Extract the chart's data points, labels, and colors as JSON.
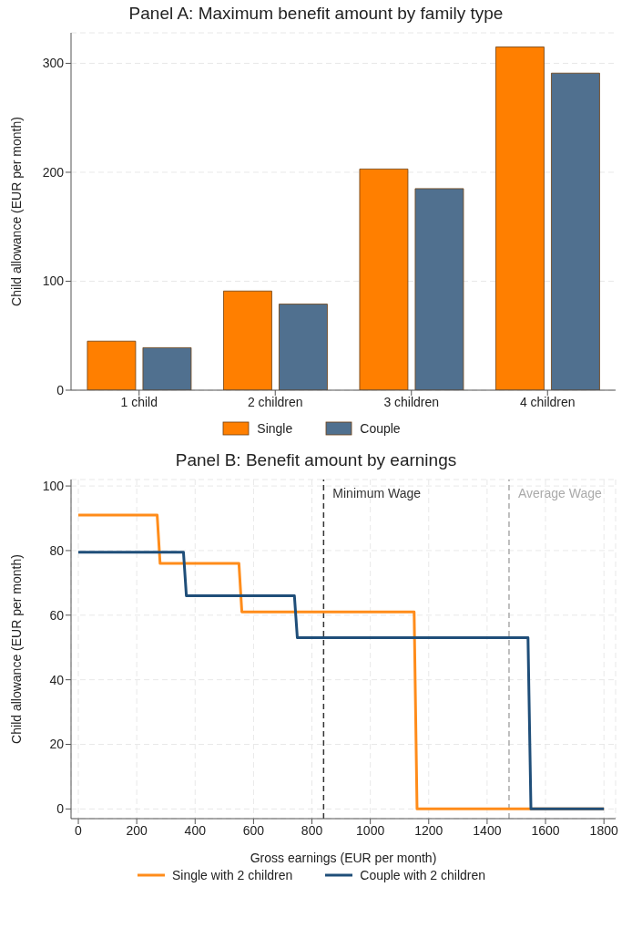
{
  "chart_data": [
    {
      "type": "bar",
      "title": "Panel A: Maximum benefit amount by family type",
      "ylabel": "Child allowance (EUR per month)",
      "categories": [
        "1 child",
        "2 children",
        "3 children",
        "4 children"
      ],
      "series": [
        {
          "name": "Single",
          "color": "#ff7f00",
          "values": [
            45,
            91,
            203,
            315
          ]
        },
        {
          "name": "Couple",
          "color": "#50708f",
          "values": [
            39,
            79,
            185,
            291
          ]
        }
      ],
      "ylim": [
        0,
        328
      ],
      "yticks": [
        0,
        100,
        200,
        300
      ],
      "grid": "y",
      "legend": "bottom"
    },
    {
      "type": "line",
      "title": "Panel B: Benefit amount by earnings",
      "xlabel": "Gross earnings (EUR per month)",
      "ylabel": "Child allowance (EUR per month)",
      "series": [
        {
          "name": "Single with 2 children",
          "color": "#ff8c1a",
          "x": [
            0,
            270,
            280,
            550,
            560,
            1150,
            1160,
            1800
          ],
          "values": [
            91,
            91,
            76,
            76,
            61,
            61,
            0,
            0
          ]
        },
        {
          "name": "Couple with 2 children",
          "color": "#1f4e79",
          "x": [
            0,
            360,
            370,
            740,
            750,
            1540,
            1550,
            1800
          ],
          "values": [
            79.5,
            79.5,
            66,
            66,
            53,
            53,
            0,
            0
          ]
        }
      ],
      "xlim": [
        -25,
        1840
      ],
      "xticks": [
        0,
        200,
        400,
        600,
        800,
        1000,
        1200,
        1400,
        1600,
        1800
      ],
      "ylim": [
        -3,
        102
      ],
      "yticks": [
        0,
        20,
        40,
        60,
        80,
        100
      ],
      "ref_lines": [
        {
          "axis": "x",
          "value": 840,
          "label": "Minimum Wage",
          "color": "#333333",
          "line_style": "dashed"
        },
        {
          "axis": "x",
          "value": 1475,
          "label": "Average Wage",
          "color": "#aaaaaa",
          "line_style": "dashed"
        }
      ],
      "grid": true,
      "legend": "bottom",
      "marker": "none",
      "line_style": "solid"
    }
  ]
}
